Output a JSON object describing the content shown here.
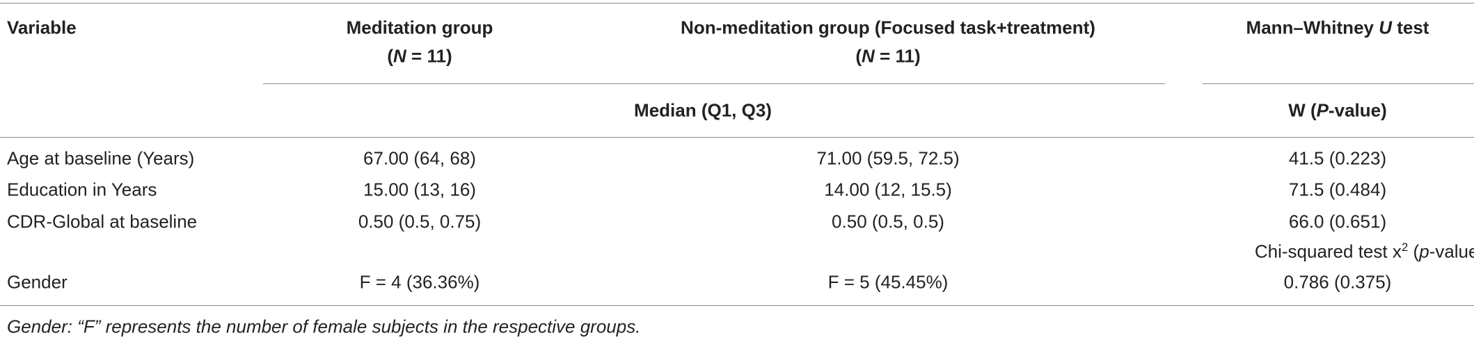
{
  "header": {
    "variable": "Variable",
    "meditation": {
      "title": "Meditation group",
      "n": [
        "(",
        "N",
        " = 11)"
      ]
    },
    "non_meditation": {
      "title": "Non-meditation group (Focused task+treatment)",
      "n": [
        "(",
        "N",
        " = 11)"
      ]
    },
    "test": [
      "Mann–Whitney ",
      "U",
      " test"
    ]
  },
  "subheader": {
    "median": "Median (Q1, Q3)",
    "w": [
      "W (",
      "P",
      "-value)"
    ]
  },
  "rows": [
    [
      "Age at baseline (Years)",
      "67.00 (64, 68)",
      "71.00 (59.5, 72.5)",
      "41.5 (0.223)"
    ],
    [
      "Education in Years",
      "15.00 (13, 16)",
      "14.00 (12, 15.5)",
      "71.5 (0.484)"
    ],
    [
      "CDR-Global at baseline",
      "0.50 (0.5, 0.75)",
      "0.50 (0.5, 0.5)",
      "66.0 (0.651)"
    ]
  ],
  "chi_header": [
    "Chi-squared test x",
    "2",
    " (",
    "p",
    "-value)"
  ],
  "gender_row": [
    "Gender",
    "F = 4 (36.36%)",
    "F = 5 (45.45%)",
    "0.786 (0.375)"
  ],
  "footnote": "Gender: “F” represents the number of female subjects in the respective groups."
}
